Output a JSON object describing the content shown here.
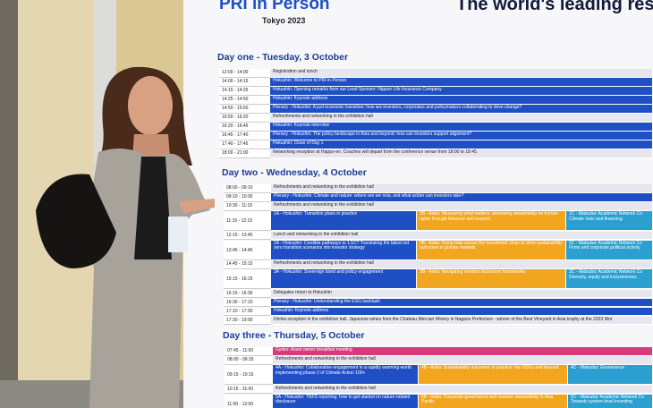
{
  "header": {
    "logo": "PRI in Person",
    "subtitle": "Tokyo 2023",
    "tagline": "The world's leading res"
  },
  "days": [
    {
      "title": "Day one - Tuesday, 3 October",
      "rows": [
        {
          "time": "12:00 - 14:00",
          "cells": [
            "Registration and lunch"
          ],
          "colors": [
            "#e6e6ee"
          ]
        },
        {
          "time": "14:00 - 14:15",
          "cells": [
            "Hokushin: Welcome to PRI in Person"
          ],
          "colors": [
            "#1f4fc4"
          ]
        },
        {
          "time": "14:15 - 14:25",
          "cells": [
            "Hokushin: Opening remarks from our Lead Sponsor: Nippon Life Insurance Company"
          ],
          "colors": [
            "#1f4fc4"
          ]
        },
        {
          "time": "14:25 - 14:50",
          "cells": [
            "Hokushin: Keynote address"
          ],
          "colors": [
            "#1f4fc4"
          ]
        },
        {
          "time": "14:50 - 15:50",
          "cells": [
            "Plenary - Hokushin: A just economic transition: how are investors, corporates and policymakers collaborating to drive change?"
          ],
          "colors": [
            "#1f4fc4"
          ]
        },
        {
          "time": "15:50 - 16:20",
          "cells": [
            "Refreshments and networking in the exhibition hall"
          ],
          "colors": [
            "#e6e6ee"
          ]
        },
        {
          "time": "16:20 - 16:45",
          "cells": [
            "Hokushin: Keynote interview"
          ],
          "colors": [
            "#1f4fc4"
          ]
        },
        {
          "time": "16:45 - 17:40",
          "cells": [
            "Plenary - Hokushin: The policy landscape in Asia and beyond: how can investors support alignment?"
          ],
          "colors": [
            "#1f4fc4"
          ]
        },
        {
          "time": "17:40 - 17:45",
          "cells": [
            "Hokushin: Close of Day 1"
          ],
          "colors": [
            "#1f4fc4"
          ]
        },
        {
          "time": "18:00 - 21:00",
          "cells": [
            "Networking reception at Happo-en. Coaches will depart from the conference venue from 18:00 to 18:45."
          ],
          "colors": [
            "#e6e6ee"
          ]
        }
      ]
    },
    {
      "title": "Day two - Wednesday, 4 October",
      "rows": [
        {
          "time": "08:00 - 09:10",
          "cells": [
            "Refreshments and networking in the exhibition hall"
          ],
          "colors": [
            "#e6e6ee"
          ]
        },
        {
          "time": "09:10 - 10:30",
          "cells": [
            "Plenary - Hokushin: Climate and nature: where are we now, and what action can investors take?"
          ],
          "colors": [
            "#1f4fc4"
          ]
        },
        {
          "time": "10:30 - 11:15",
          "cells": [
            "Refreshments and networking in the exhibition hall"
          ],
          "colors": [
            "#e6e6ee"
          ]
        },
        {
          "time": "11:15 - 12:15",
          "cells": [
            "1A - Hokushin: Transition plans in practice",
            "1B - Aoba: Measuring what matters: assessing stewardship on human rights through Advance and beyond",
            "1C - Matsuba: Academic Network Co Climate risks and financing"
          ],
          "colors": [
            "#1f4fc4",
            "#f2a51f",
            "#2a9fd0"
          ]
        },
        {
          "time": "12:15 - 13:45",
          "cells": [
            "Lunch and networking in the exhibition hall"
          ],
          "colors": [
            "#e6e6ee"
          ]
        },
        {
          "time": "13:45 - 14:45",
          "cells": [
            "2A - Hokushin: Credible pathways to 1.5C? Translating the latest net zero transition scenarios into investor strategy",
            "2B - Aoba: Using data across the investment chain to drive sustainability outcomes in private markets",
            "2C - Matsuba: Academic Network Co Firms and corporate political activity"
          ],
          "colors": [
            "#1f4fc4",
            "#f2a51f",
            "#2a9fd0"
          ]
        },
        {
          "time": "14:45 - 15:15",
          "cells": [
            "Refreshments and networking in the exhibition hall"
          ],
          "colors": [
            "#e6e6ee"
          ]
        },
        {
          "time": "15:15 - 16:15",
          "cells": [
            "3A - Hokushin: Sovereign bond and policy engagement",
            "3B - Aoba: Navigating investor disclosure frameworks",
            "3C - Matsuba: Academic Network Co Diversity, equity and inclusiveness"
          ],
          "colors": [
            "#1f4fc4",
            "#f2a51f",
            "#2a9fd0"
          ]
        },
        {
          "time": "16:15 - 16:30",
          "cells": [
            "Delegates return to Hokushin"
          ],
          "colors": [
            "#e6e6ee"
          ]
        },
        {
          "time": "16:30 - 17:10",
          "cells": [
            "Plenary - Hokushin: Understanding the ESG backlash"
          ],
          "colors": [
            "#1f4fc4"
          ]
        },
        {
          "time": "17:10 - 17:30",
          "cells": [
            "Hokushin: Keynote address"
          ],
          "colors": [
            "#1f4fc4"
          ]
        },
        {
          "time": "17:30 - 19:00",
          "cells": [
            "Drinks reception in the exhibition hall. Japanese wines from the Chateau Mercian Winery in Nagano Prefecture - winner of the Best Vineyard in Asia trophy at the 2023 Wor"
          ],
          "colors": [
            "#e6e6ee"
          ]
        }
      ]
    },
    {
      "title": "Day three - Thursday, 5 October",
      "rows": [
        {
          "time": "07:45 - 11:00",
          "cells": [
            "Gyoko: Asset owner breakfast meeting"
          ],
          "colors": [
            "#d83a7a"
          ]
        },
        {
          "time": "08:00 - 09:15",
          "cells": [
            "Refreshments and networking in the exhibition hall"
          ],
          "colors": [
            "#e6e6ee"
          ]
        },
        {
          "time": "09:15 - 10:15",
          "cells": [
            "4A - Hokushin: Collaborative engagement in a rapidly warming world: implementing phase 2 of Climate Action 100+",
            "4B - Aoba: Sustainability outcomes in practice: the SDGs and beyond",
            "4C - Matsuba: Governance"
          ],
          "colors": [
            "#1f4fc4",
            "#f2a51f",
            "#2a9fd0"
          ]
        },
        {
          "time": "10:15 - 11:00",
          "cells": [
            "Refreshments and networking in the exhibition hall"
          ],
          "colors": [
            "#e6e6ee"
          ]
        },
        {
          "time": "11:00 - 12:00",
          "cells": [
            "5A - Hokushin: TNFD reporting: how to get started on nature-related disclosure",
            "5B - Aoba: Corporate governance and investor stewardship in Asia Pacific",
            "5C - Matsuba: Academic Network Co Towards system-level investing"
          ],
          "colors": [
            "#1f4fc4",
            "#f2a51f",
            "#2a9fd0"
          ]
        }
      ]
    }
  ]
}
